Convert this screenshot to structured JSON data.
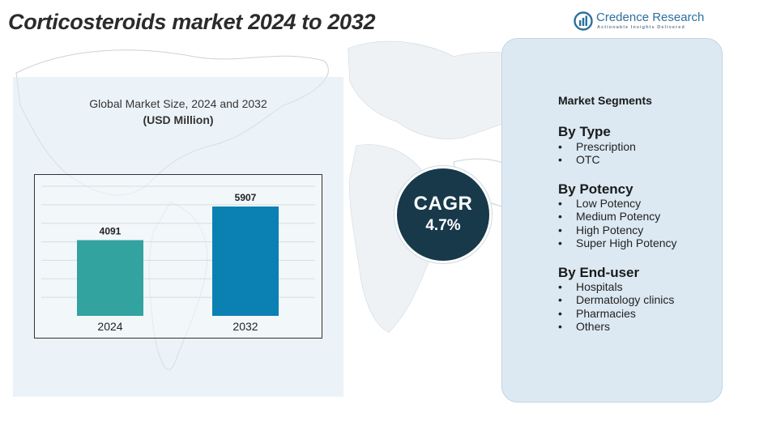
{
  "title": "Corticosteroids market 2024 to 2032",
  "brand": {
    "name": "Credence Research",
    "tagline": "Actionable Insights Delivered",
    "color": "#2c6f9e"
  },
  "chart_data": {
    "type": "bar",
    "title": "Global Market Size, 2024 and 2032",
    "subtitle": "(USD Million)",
    "categories": [
      "2024",
      "2032"
    ],
    "values": [
      4091,
      5907
    ],
    "bar_colors": [
      "#33a3a0",
      "#0b80b3"
    ],
    "ylim": [
      0,
      7000
    ],
    "grid": true,
    "xlabel": "",
    "ylabel": ""
  },
  "cagr": {
    "label": "CAGR",
    "value": "4.7%"
  },
  "segments": {
    "title": "Market Segments",
    "groups": [
      {
        "heading": "By Type",
        "items": [
          "Prescription",
          "OTC"
        ]
      },
      {
        "heading": "By Potency",
        "items": [
          "Low Potency",
          "Medium Potency",
          "High Potency",
          "Super High Potency"
        ]
      },
      {
        "heading": "By End-user",
        "items": [
          "Hospitals",
          "Dermatology clinics",
          "Pharmacies",
          "Others"
        ]
      }
    ]
  }
}
